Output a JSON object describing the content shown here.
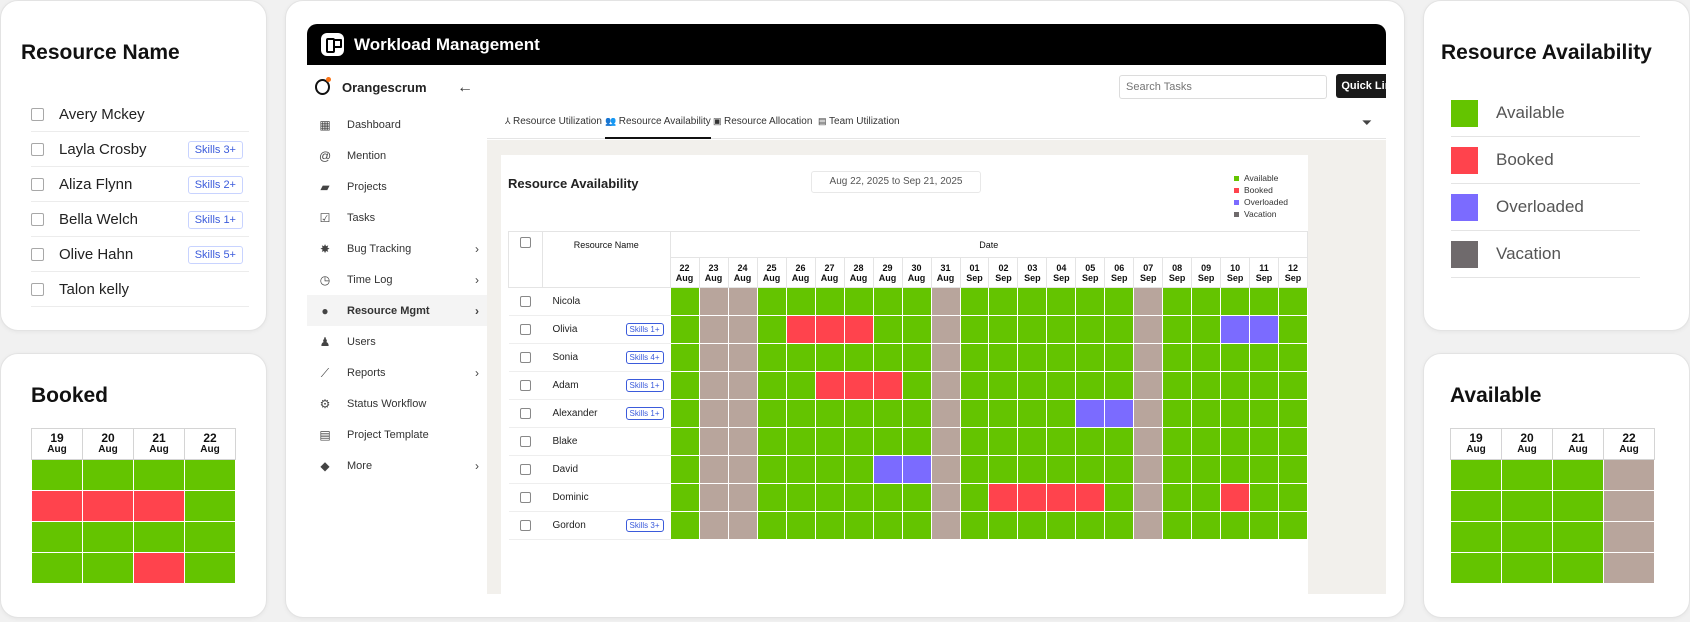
{
  "resource_name_card": {
    "title": "Resource Name",
    "rows": [
      {
        "name": "Avery Mckey",
        "skill": ""
      },
      {
        "name": "Layla Crosby",
        "skill": "Skills 3+"
      },
      {
        "name": "Aliza Flynn",
        "skill": "Skills 2+"
      },
      {
        "name": "Bella Welch",
        "skill": "Skills 1+"
      },
      {
        "name": "Olive Hahn",
        "skill": "Skills 5+"
      },
      {
        "name": "Talon kelly",
        "skill": ""
      }
    ]
  },
  "booked_card": {
    "title": "Booked",
    "columns": [
      {
        "day": "19",
        "month": "Aug"
      },
      {
        "day": "20",
        "month": "Aug"
      },
      {
        "day": "21",
        "month": "Aug"
      },
      {
        "day": "22",
        "month": "Aug"
      }
    ],
    "cells": [
      [
        "g",
        "g",
        "g",
        "g"
      ],
      [
        "r",
        "r",
        "r",
        "g"
      ],
      [
        "g",
        "g",
        "g",
        "g"
      ],
      [
        "g",
        "g",
        "r",
        "g"
      ]
    ]
  },
  "available_card": {
    "title": "Available",
    "columns": [
      {
        "day": "19",
        "month": "Aug"
      },
      {
        "day": "20",
        "month": "Aug"
      },
      {
        "day": "21",
        "month": "Aug"
      },
      {
        "day": "22",
        "month": "Aug"
      }
    ],
    "cells": [
      [
        "g",
        "g",
        "g",
        "v"
      ],
      [
        "g",
        "g",
        "g",
        "v"
      ],
      [
        "g",
        "g",
        "g",
        "v"
      ],
      [
        "g",
        "g",
        "g",
        "v"
      ]
    ]
  },
  "availability_legend_card": {
    "title": "Resource Availability",
    "items": [
      {
        "label": "Available",
        "color": "#64c400"
      },
      {
        "label": "Booked",
        "color": "#ff434d"
      },
      {
        "label": "Overloaded",
        "color": "#7b6bff"
      },
      {
        "label": "Vacation",
        "color": "#6f6a6c"
      }
    ]
  },
  "app": {
    "window_title": "Workload Management",
    "brand": "Orangescrum",
    "nav": [
      {
        "label": "Dashboard",
        "icon": "dashboard-icon",
        "glyph": "▦",
        "chevron": false,
        "active": false
      },
      {
        "label": "Mention",
        "icon": "at-icon",
        "glyph": "@",
        "chevron": false,
        "active": false
      },
      {
        "label": "Projects",
        "icon": "briefcase-icon",
        "glyph": "▰",
        "chevron": false,
        "active": false
      },
      {
        "label": "Tasks",
        "icon": "clipboard-check-icon",
        "glyph": "☑",
        "chevron": false,
        "active": false
      },
      {
        "label": "Bug Tracking",
        "icon": "bug-icon",
        "glyph": "✸",
        "chevron": true,
        "active": false
      },
      {
        "label": "Time Log",
        "icon": "clock-icon",
        "glyph": "◷",
        "chevron": true,
        "active": false
      },
      {
        "label": "Resource Mgmt",
        "icon": "resource-icon",
        "glyph": "●",
        "chevron": true,
        "active": true
      },
      {
        "label": "Users",
        "icon": "user-icon",
        "glyph": "♟",
        "chevron": false,
        "active": false
      },
      {
        "label": "Reports",
        "icon": "chart-line-icon",
        "glyph": "⟋",
        "chevron": true,
        "active": false
      },
      {
        "label": "Status Workflow",
        "icon": "workflow-icon",
        "glyph": "⚙",
        "chevron": false,
        "active": false
      },
      {
        "label": "Project Template",
        "icon": "template-icon",
        "glyph": "▤",
        "chevron": false,
        "active": false
      },
      {
        "label": "More",
        "icon": "layers-icon",
        "glyph": "◆",
        "chevron": true,
        "active": false
      }
    ],
    "search_placeholder": "Search Tasks",
    "quick_links": "Quick Links",
    "tabs": [
      {
        "label": "Resource Utilization",
        "glyph": "⅄"
      },
      {
        "label": "Resource Availability",
        "glyph": "👥"
      },
      {
        "label": "Resource Allocation",
        "glyph": "▣"
      },
      {
        "label": "Team Utilization",
        "glyph": "▤"
      }
    ],
    "panel": {
      "title": "Resource Availability",
      "date_range": "Aug 22, 2025 to Sep 21, 2025",
      "legend": [
        {
          "label": "Available",
          "color": "#64c400"
        },
        {
          "label": "Booked",
          "color": "#ff434d"
        },
        {
          "label": "Overloaded",
          "color": "#7b6bff"
        },
        {
          "label": "Vacation",
          "color": "#6f6a6c"
        }
      ],
      "col_resource": "Resource Name",
      "col_date": "Date",
      "dates": [
        {
          "day": "22",
          "month": "Aug"
        },
        {
          "day": "23",
          "month": "Aug"
        },
        {
          "day": "24",
          "month": "Aug"
        },
        {
          "day": "25",
          "month": "Aug"
        },
        {
          "day": "26",
          "month": "Aug"
        },
        {
          "day": "27",
          "month": "Aug"
        },
        {
          "day": "28",
          "month": "Aug"
        },
        {
          "day": "29",
          "month": "Aug"
        },
        {
          "day": "30",
          "month": "Aug"
        },
        {
          "day": "31",
          "month": "Aug"
        },
        {
          "day": "01",
          "month": "Sep"
        },
        {
          "day": "02",
          "month": "Sep"
        },
        {
          "day": "03",
          "month": "Sep"
        },
        {
          "day": "04",
          "month": "Sep"
        },
        {
          "day": "05",
          "month": "Sep"
        },
        {
          "day": "06",
          "month": "Sep"
        },
        {
          "day": "07",
          "month": "Sep"
        },
        {
          "day": "08",
          "month": "Sep"
        },
        {
          "day": "09",
          "month": "Sep"
        },
        {
          "day": "10",
          "month": "Sep"
        },
        {
          "day": "11",
          "month": "Sep"
        },
        {
          "day": "12",
          "month": "Sep"
        }
      ],
      "rows": [
        {
          "name": "Nicola",
          "skill": "",
          "cells": "gvvggggggvggggggvggggg"
        },
        {
          "name": "Olivia",
          "skill": "Skills 1+",
          "cells": "gvvgrrrggvggggggvggppg"
        },
        {
          "name": "Sonia",
          "skill": "Skills 4+",
          "cells": "gvvggggggvggggggvggggg"
        },
        {
          "name": "Adam",
          "skill": "Skills 1+",
          "cells": "gvvggrrrgvggggggvggggg"
        },
        {
          "name": "Alexander",
          "skill": "Skills 1+",
          "cells": "gvvggggggvggggppvggggg"
        },
        {
          "name": "Blake",
          "skill": "",
          "cells": "gvvggggggvggggggvggggg"
        },
        {
          "name": "David",
          "skill": "",
          "cells": "gvvggggppvggggggvggggg"
        },
        {
          "name": "Dominic",
          "skill": "",
          "cells": "gvvggggggvgrrrrgvggrgg"
        },
        {
          "name": "Gordon",
          "skill": "Skills 3+",
          "cells": "gvvggggggvggggggvggggg"
        }
      ]
    }
  }
}
